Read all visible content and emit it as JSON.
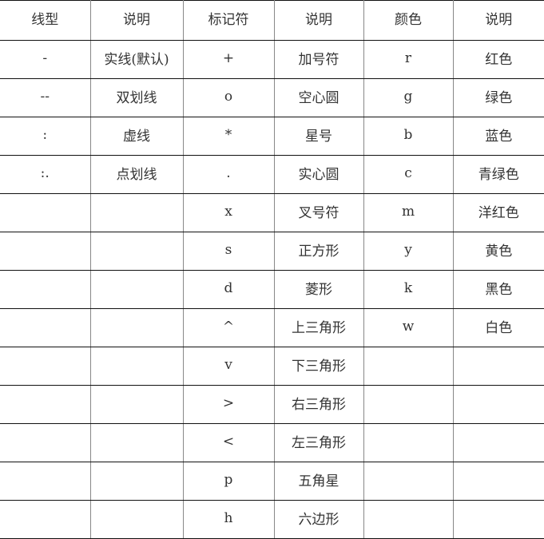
{
  "headers": [
    "线型",
    "说明",
    "标记符",
    "说明",
    "颜色",
    "说明"
  ],
  "rows": [
    [
      "-",
      "实线(默认)",
      "+",
      "加号符",
      "r",
      "红色"
    ],
    [
      "--",
      "双划线",
      "o",
      "空心圆",
      "g",
      "绿色"
    ],
    [
      ":",
      "虚线",
      "*",
      "星号",
      "b",
      "蓝色"
    ],
    [
      ":.",
      "点划线",
      ".",
      "实心圆",
      "c",
      "青绿色"
    ],
    [
      "",
      "",
      "x",
      "叉号符",
      "m",
      "洋红色"
    ],
    [
      "",
      "",
      "s",
      "正方形",
      "y",
      "黄色"
    ],
    [
      "",
      "",
      "d",
      "菱形",
      "k",
      "黑色"
    ],
    [
      "",
      "",
      "^",
      "上三角形",
      "w",
      "白色"
    ],
    [
      "",
      "",
      "v",
      "下三角形",
      "",
      ""
    ],
    [
      "",
      "",
      ">",
      "右三角形",
      "",
      ""
    ],
    [
      "",
      "",
      "<",
      "左三角形",
      "",
      ""
    ],
    [
      "",
      "",
      "p",
      "五角星",
      "",
      ""
    ],
    [
      "",
      "",
      "h",
      "六边形",
      "",
      ""
    ]
  ]
}
